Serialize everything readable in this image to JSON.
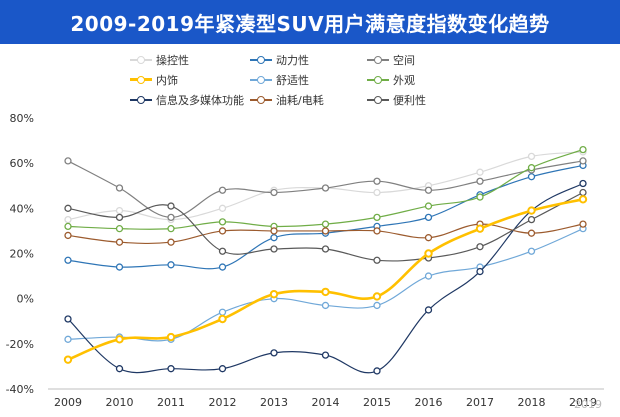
{
  "chart_data": {
    "type": "line",
    "title": "2009-2019年紧凑型SUV用户满意度指数变化趋势",
    "categories": [
      "2009",
      "2010",
      "2011",
      "2012",
      "2013",
      "2014",
      "2015",
      "2016",
      "2017",
      "2018",
      "2019"
    ],
    "ylim": [
      -40,
      80
    ],
    "yticks": [
      "-40%",
      "-20%",
      "0%",
      "20%",
      "40%",
      "60%",
      "80%"
    ],
    "xlabel": "",
    "ylabel": "",
    "grid": "none",
    "legend_position": "top",
    "series": [
      {
        "name": "操控性",
        "color": "#d9d9d9",
        "width": 1.2,
        "values": [
          35,
          39,
          35,
          40,
          48,
          49,
          47,
          50,
          56,
          63,
          65
        ]
      },
      {
        "name": "动力性",
        "color": "#2e75b6",
        "width": 1.2,
        "values": [
          17,
          14,
          15,
          14,
          27,
          29,
          32,
          36,
          46,
          54,
          59
        ]
      },
      {
        "name": "空间",
        "color": "#808080",
        "width": 1.2,
        "values": [
          61,
          49,
          36,
          48,
          47,
          49,
          52,
          48,
          52,
          57,
          61
        ]
      },
      {
        "name": "内饰",
        "color": "#ffc000",
        "width": 2.6,
        "values": [
          -27,
          -18,
          -17,
          -9,
          2,
          3,
          1,
          20,
          31,
          39,
          44
        ]
      },
      {
        "name": "舒适性",
        "color": "#70a8d8",
        "width": 1.2,
        "values": [
          -18,
          -17,
          -18,
          -6,
          0,
          -3,
          -3,
          10,
          14,
          21,
          31
        ]
      },
      {
        "name": "外观",
        "color": "#70ad47",
        "width": 1.2,
        "values": [
          32,
          31,
          31,
          34,
          32,
          33,
          36,
          41,
          45,
          58,
          66
        ]
      },
      {
        "name": "信息及多媒体功能",
        "color": "#1f3864",
        "width": 1.2,
        "values": [
          -9,
          -31,
          -31,
          -31,
          -24,
          -25,
          -32,
          -5,
          12,
          39,
          51
        ]
      },
      {
        "name": "油耗/电耗",
        "color": "#9c5b2e",
        "width": 1.2,
        "values": [
          28,
          25,
          25,
          30,
          30,
          30,
          30,
          27,
          33,
          29,
          33
        ]
      },
      {
        "name": "便利性",
        "color": "#595959",
        "width": 1.2,
        "values": [
          40,
          36,
          41,
          21,
          22,
          22,
          17,
          18,
          23,
          35,
          47
        ]
      }
    ],
    "watermark": "2019"
  }
}
